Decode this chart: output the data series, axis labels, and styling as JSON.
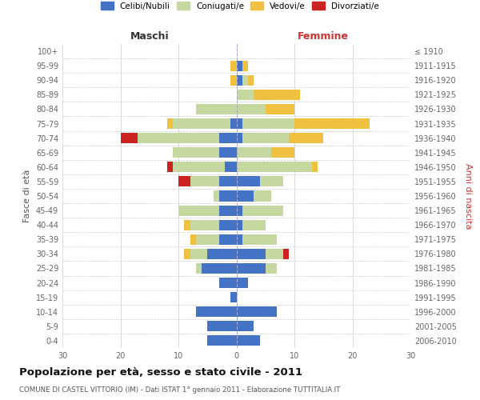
{
  "age_groups": [
    "0-4",
    "5-9",
    "10-14",
    "15-19",
    "20-24",
    "25-29",
    "30-34",
    "35-39",
    "40-44",
    "45-49",
    "50-54",
    "55-59",
    "60-64",
    "65-69",
    "70-74",
    "75-79",
    "80-84",
    "85-89",
    "90-94",
    "95-99",
    "100+"
  ],
  "birth_years": [
    "2006-2010",
    "2001-2005",
    "1996-2000",
    "1991-1995",
    "1986-1990",
    "1981-1985",
    "1976-1980",
    "1971-1975",
    "1966-1970",
    "1961-1965",
    "1956-1960",
    "1951-1955",
    "1946-1950",
    "1941-1945",
    "1936-1940",
    "1931-1935",
    "1926-1930",
    "1921-1925",
    "1916-1920",
    "1911-1915",
    "≤ 1910"
  ],
  "colors": {
    "celibe": "#4472c4",
    "coniugato": "#c5d8a0",
    "vedovo": "#f0c040",
    "divorziato": "#cc2222"
  },
  "maschi": {
    "celibe": [
      5,
      5,
      7,
      1,
      3,
      6,
      5,
      3,
      3,
      3,
      3,
      3,
      2,
      3,
      3,
      1,
      0,
      0,
      0,
      0,
      0
    ],
    "coniugato": [
      0,
      0,
      0,
      0,
      0,
      1,
      3,
      4,
      5,
      7,
      1,
      5,
      9,
      8,
      14,
      10,
      7,
      0,
      0,
      0,
      0
    ],
    "vedovo": [
      0,
      0,
      0,
      0,
      0,
      0,
      1,
      1,
      1,
      0,
      0,
      0,
      0,
      0,
      0,
      1,
      0,
      0,
      1,
      1,
      0
    ],
    "divorziato": [
      0,
      0,
      0,
      0,
      0,
      0,
      0,
      0,
      0,
      0,
      0,
      2,
      1,
      0,
      3,
      0,
      0,
      0,
      0,
      0,
      0
    ]
  },
  "femmine": {
    "celibe": [
      4,
      3,
      7,
      0,
      2,
      5,
      5,
      1,
      1,
      1,
      3,
      4,
      0,
      0,
      1,
      1,
      0,
      0,
      1,
      1,
      0
    ],
    "coniugato": [
      0,
      0,
      0,
      0,
      0,
      2,
      3,
      6,
      4,
      7,
      3,
      4,
      13,
      6,
      8,
      9,
      5,
      3,
      1,
      0,
      0
    ],
    "vedovo": [
      0,
      0,
      0,
      0,
      0,
      0,
      0,
      0,
      0,
      0,
      0,
      0,
      1,
      4,
      6,
      13,
      5,
      8,
      1,
      1,
      0
    ],
    "divorziato": [
      0,
      0,
      0,
      0,
      0,
      0,
      1,
      0,
      0,
      0,
      0,
      0,
      0,
      0,
      0,
      0,
      0,
      0,
      0,
      0,
      0
    ]
  },
  "title": "Popolazione per età, sesso e stato civile - 2011",
  "subtitle": "COMUNE DI CASTEL VITTORIO (IM) - Dati ISTAT 1° gennaio 2011 - Elaborazione TUTTITALIA.IT",
  "xlabel_maschi": "Maschi",
  "xlabel_femmine": "Femmine",
  "ylabel_left": "Fasce di età",
  "ylabel_right": "Anni di nascita",
  "xlim": 30,
  "legend_labels": [
    "Celibi/Nubili",
    "Coniugati/e",
    "Vedovi/e",
    "Divorziati/e"
  ],
  "background_color": "#ffffff",
  "grid_color": "#cccccc"
}
